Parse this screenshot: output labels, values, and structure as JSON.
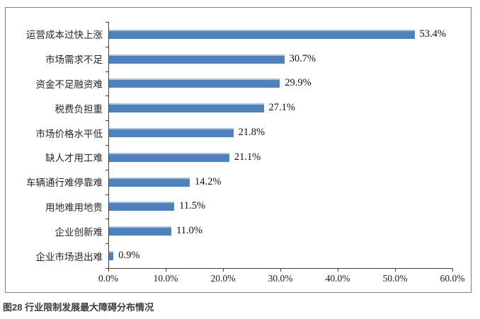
{
  "caption": "图28 行业限制发展最大障碍分布情况",
  "colors": {
    "bar_fill": "#4f81bd",
    "bar_highlight": "#a9c3e2",
    "axis": "#404040",
    "frame_border": "#7f7f7f",
    "label_text": "#262626",
    "value_text": "#111111"
  },
  "chart_data": {
    "type": "bar",
    "orientation": "horizontal",
    "title": "",
    "xlabel": "",
    "ylabel": "",
    "categories": [
      "运营成本过快上涨",
      "市场需求不足",
      "资金不足融资难",
      "税费负担重",
      "市场价格水平低",
      "缺人才用工难",
      "车辆通行难停靠难",
      "用地难用地贵",
      "企业创新难",
      "企业市场退出难"
    ],
    "values": [
      53.4,
      30.7,
      29.9,
      27.1,
      21.8,
      21.1,
      14.2,
      11.5,
      11.0,
      0.9
    ],
    "value_labels": [
      "53.4%",
      "30.7%",
      "29.9%",
      "27.1%",
      "21.8%",
      "21.1%",
      "14.2%",
      "11.5%",
      "11.0%",
      "0.9%"
    ],
    "xlim": [
      0,
      60
    ],
    "x_ticks": [
      "0.0%",
      "10.0%",
      "20.0%",
      "30.0%",
      "40.0%",
      "50.0%",
      "60.0%"
    ],
    "grid": false,
    "legend": false,
    "data_labels": true
  }
}
